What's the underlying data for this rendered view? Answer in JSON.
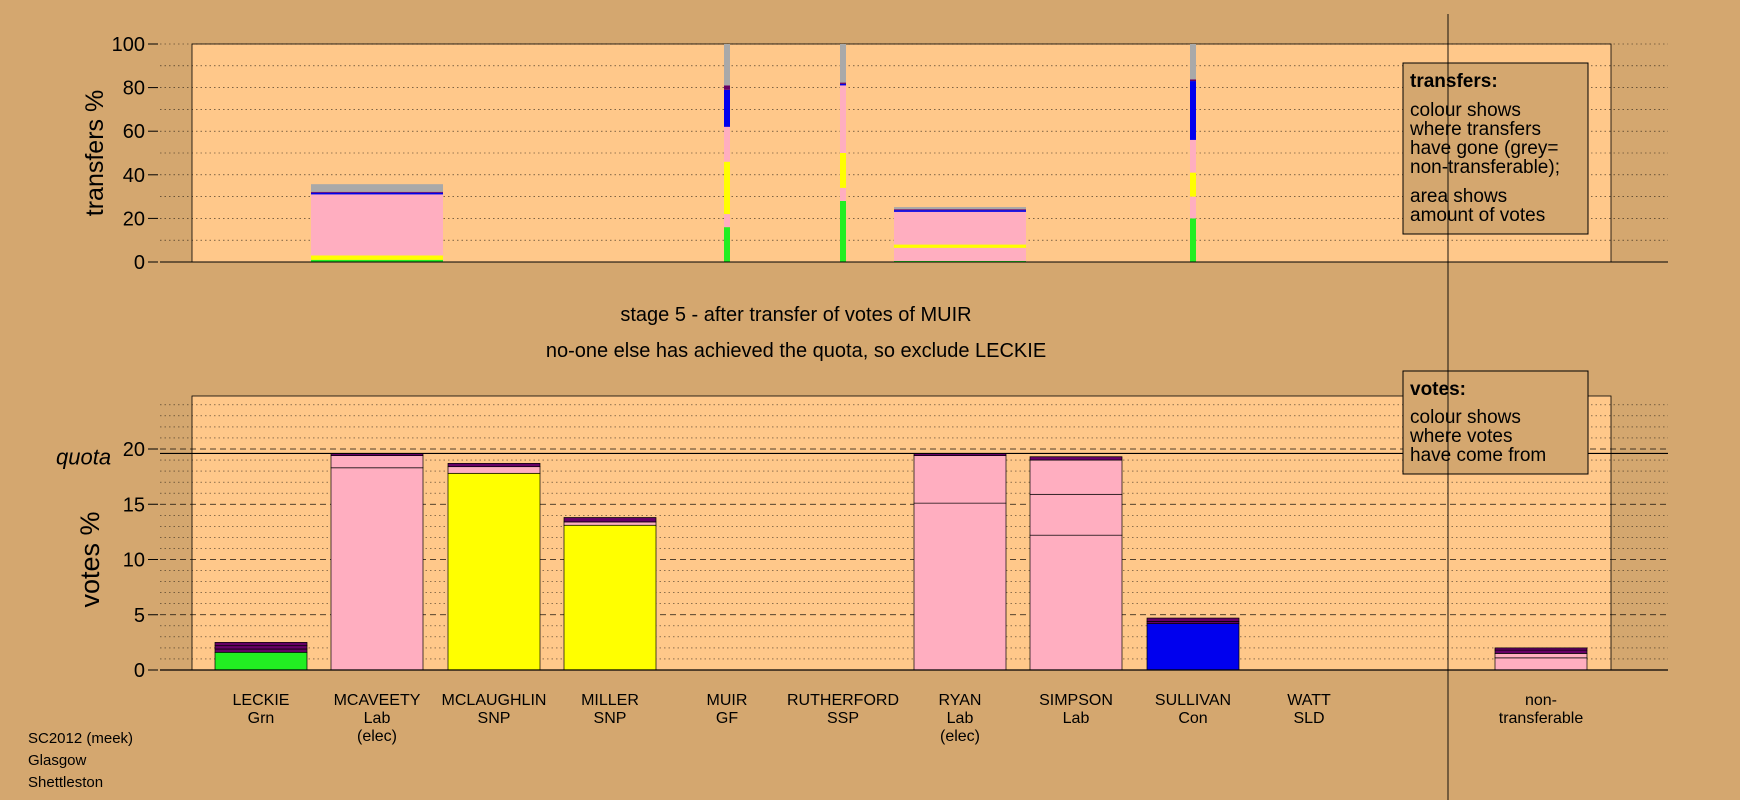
{
  "page": {
    "background": "#d4a76f",
    "plot_background": "#ffc88a",
    "footer": [
      "SC2012 (meek)",
      "Glasgow",
      "Shettleston"
    ]
  },
  "headline": {
    "line1": "stage 5 - after transfer of votes of MUIR",
    "line2": "no-one else has achieved the quota, so exclude LECKIE"
  },
  "colors": {
    "Grn": "#22ee22",
    "Lab": "#ffaec0",
    "SNP": "#ffff00",
    "Con": "#0000ee",
    "other": "#660066",
    "nontransferable": "#a9a9a9"
  },
  "chart_data": [
    {
      "type": "bar",
      "id": "transfers",
      "ylabel": "transfers %",
      "ylim": [
        0,
        100
      ],
      "yticks": [
        0,
        20,
        40,
        60,
        80,
        100
      ],
      "grid": "dotted horizontal every 10",
      "legend": {
        "placement": "top-right",
        "title": "transfers:",
        "text1": "colour shows where transfers have gone (grey= non-transferable);",
        "text2": "area shows amount of votes"
      },
      "categories": [
        "LECKIE",
        "MCAVEETY",
        "MCLAUGHLIN",
        "MILLER",
        "MUIR",
        "RUTHERFORD",
        "RYAN",
        "SIMPSON",
        "SULLIVAN",
        "WATT"
      ],
      "bars": [
        {
          "candidate": "LECKIE",
          "width": "narrow",
          "segments": []
        },
        {
          "candidate": "MCAVEETY",
          "width": "wide",
          "segments": [
            {
              "color": "Grn",
              "value": 1
            },
            {
              "color": "SNP",
              "value": 2
            },
            {
              "color": "Lab",
              "value": 28
            },
            {
              "color": "Con",
              "value": 0.8
            },
            {
              "color": "other",
              "value": 0.4
            },
            {
              "color": "nontransferable",
              "value": 3.5
            }
          ]
        },
        {
          "candidate": "MCLAUGHLIN",
          "width": "narrow",
          "segments": []
        },
        {
          "candidate": "MILLER",
          "width": "narrow",
          "segments": []
        },
        {
          "candidate": "MUIR",
          "width": "narrow",
          "segments": [
            {
              "color": "Grn",
              "value": 16
            },
            {
              "color": "Lab",
              "value": 6
            },
            {
              "color": "SNP",
              "value": 24
            },
            {
              "color": "Lab",
              "value": 16
            },
            {
              "color": "Con",
              "value": 17
            },
            {
              "color": "other",
              "value": 2
            },
            {
              "color": "nontransferable",
              "value": 19
            }
          ]
        },
        {
          "candidate": "RUTHERFORD",
          "width": "narrow",
          "segments": [
            {
              "color": "Grn",
              "value": 28
            },
            {
              "color": "Lab",
              "value": 6
            },
            {
              "color": "SNP",
              "value": 16
            },
            {
              "color": "Lab",
              "value": 31
            },
            {
              "color": "Con",
              "value": 0.7
            },
            {
              "color": "other",
              "value": 0.6
            },
            {
              "color": "nontransferable",
              "value": 17.7
            }
          ]
        },
        {
          "candidate": "RYAN",
          "width": "wide",
          "segments": [
            {
              "color": "Grn",
              "value": 0.5
            },
            {
              "color": "Lab",
              "value": 6
            },
            {
              "color": "SNP",
              "value": 1.5
            },
            {
              "color": "Lab",
              "value": 15
            },
            {
              "color": "Con",
              "value": 0.8
            },
            {
              "color": "other",
              "value": 0.4
            },
            {
              "color": "nontransferable",
              "value": 1
            }
          ]
        },
        {
          "candidate": "SIMPSON",
          "width": "narrow",
          "segments": []
        },
        {
          "candidate": "SULLIVAN",
          "width": "narrow",
          "segments": [
            {
              "color": "Grn",
              "value": 20
            },
            {
              "color": "Lab",
              "value": 10
            },
            {
              "color": "SNP",
              "value": 11
            },
            {
              "color": "Lab",
              "value": 15
            },
            {
              "color": "Con",
              "value": 27
            },
            {
              "color": "other",
              "value": 0.8
            },
            {
              "color": "nontransferable",
              "value": 16.2
            }
          ]
        },
        {
          "candidate": "WATT",
          "width": "narrow",
          "segments": []
        }
      ]
    },
    {
      "type": "bar",
      "id": "votes",
      "ylabel": "votes %",
      "ylim": [
        0,
        20
      ],
      "yticks": [
        0,
        5,
        10,
        15,
        20
      ],
      "quota": {
        "label": "quota",
        "value": 19.6
      },
      "grid": "dashed every 5, dotted every 1",
      "legend": {
        "placement": "top-right",
        "title": "votes:",
        "text": "colour shows where votes have come from"
      },
      "categories": [
        {
          "name": "LECKIE",
          "party": "Grn",
          "note": ""
        },
        {
          "name": "MCAVEETY",
          "party": "Lab",
          "note": "(elec)"
        },
        {
          "name": "MCLAUGHLIN",
          "party": "SNP",
          "note": ""
        },
        {
          "name": "MILLER",
          "party": "SNP",
          "note": ""
        },
        {
          "name": "MUIR",
          "party": "GF",
          "note": ""
        },
        {
          "name": "RUTHERFORD",
          "party": "SSP",
          "note": ""
        },
        {
          "name": "RYAN",
          "party": "Lab",
          "note": "(elec)"
        },
        {
          "name": "SIMPSON",
          "party": "Lab",
          "note": ""
        },
        {
          "name": "SULLIVAN",
          "party": "Con",
          "note": ""
        },
        {
          "name": "WATT",
          "party": "SLD",
          "note": ""
        },
        {
          "name": "non-",
          "party": "transferable",
          "note": ""
        }
      ],
      "bars": [
        {
          "candidate": "LECKIE",
          "segments": [
            {
              "color": "Grn",
              "value": 1.6
            },
            {
              "color": "other",
              "value": 0.3
            },
            {
              "color": "other",
              "value": 0.3
            },
            {
              "color": "other",
              "value": 0.3
            }
          ]
        },
        {
          "candidate": "MCAVEETY",
          "segments": [
            {
              "color": "Lab",
              "value": 18.3
            },
            {
              "color": "Lab",
              "value": 1.1
            },
            {
              "color": "other",
              "value": 0.2
            }
          ]
        },
        {
          "candidate": "MCLAUGHLIN",
          "segments": [
            {
              "color": "SNP",
              "value": 17.8
            },
            {
              "color": "Lab",
              "value": 0.6
            },
            {
              "color": "other",
              "value": 0.3
            }
          ]
        },
        {
          "candidate": "MILLER",
          "segments": [
            {
              "color": "SNP",
              "value": 13.1
            },
            {
              "color": "Lab",
              "value": 0.3
            },
            {
              "color": "other",
              "value": 0.4
            }
          ]
        },
        {
          "candidate": "MUIR",
          "segments": []
        },
        {
          "candidate": "RUTHERFORD",
          "segments": []
        },
        {
          "candidate": "RYAN",
          "segments": [
            {
              "color": "Lab",
              "value": 15.1
            },
            {
              "color": "Lab",
              "value": 4.3
            },
            {
              "color": "other",
              "value": 0.2
            }
          ]
        },
        {
          "candidate": "SIMPSON",
          "segments": [
            {
              "color": "Lab",
              "value": 12.2
            },
            {
              "color": "Lab",
              "value": 3.7
            },
            {
              "color": "Lab",
              "value": 3.1
            },
            {
              "color": "other",
              "value": 0.3
            }
          ]
        },
        {
          "candidate": "SULLIVAN",
          "segments": [
            {
              "color": "Con",
              "value": 4.2
            },
            {
              "color": "other",
              "value": 0.2
            },
            {
              "color": "other",
              "value": 0.3
            }
          ]
        },
        {
          "candidate": "WATT",
          "segments": []
        },
        {
          "candidate": "non-transferable",
          "segments": [
            {
              "color": "Lab",
              "value": 1.1
            },
            {
              "color": "Lab",
              "value": 0.4
            },
            {
              "color": "other",
              "value": 0.3
            },
            {
              "color": "other",
              "value": 0.2
            }
          ]
        }
      ]
    }
  ]
}
